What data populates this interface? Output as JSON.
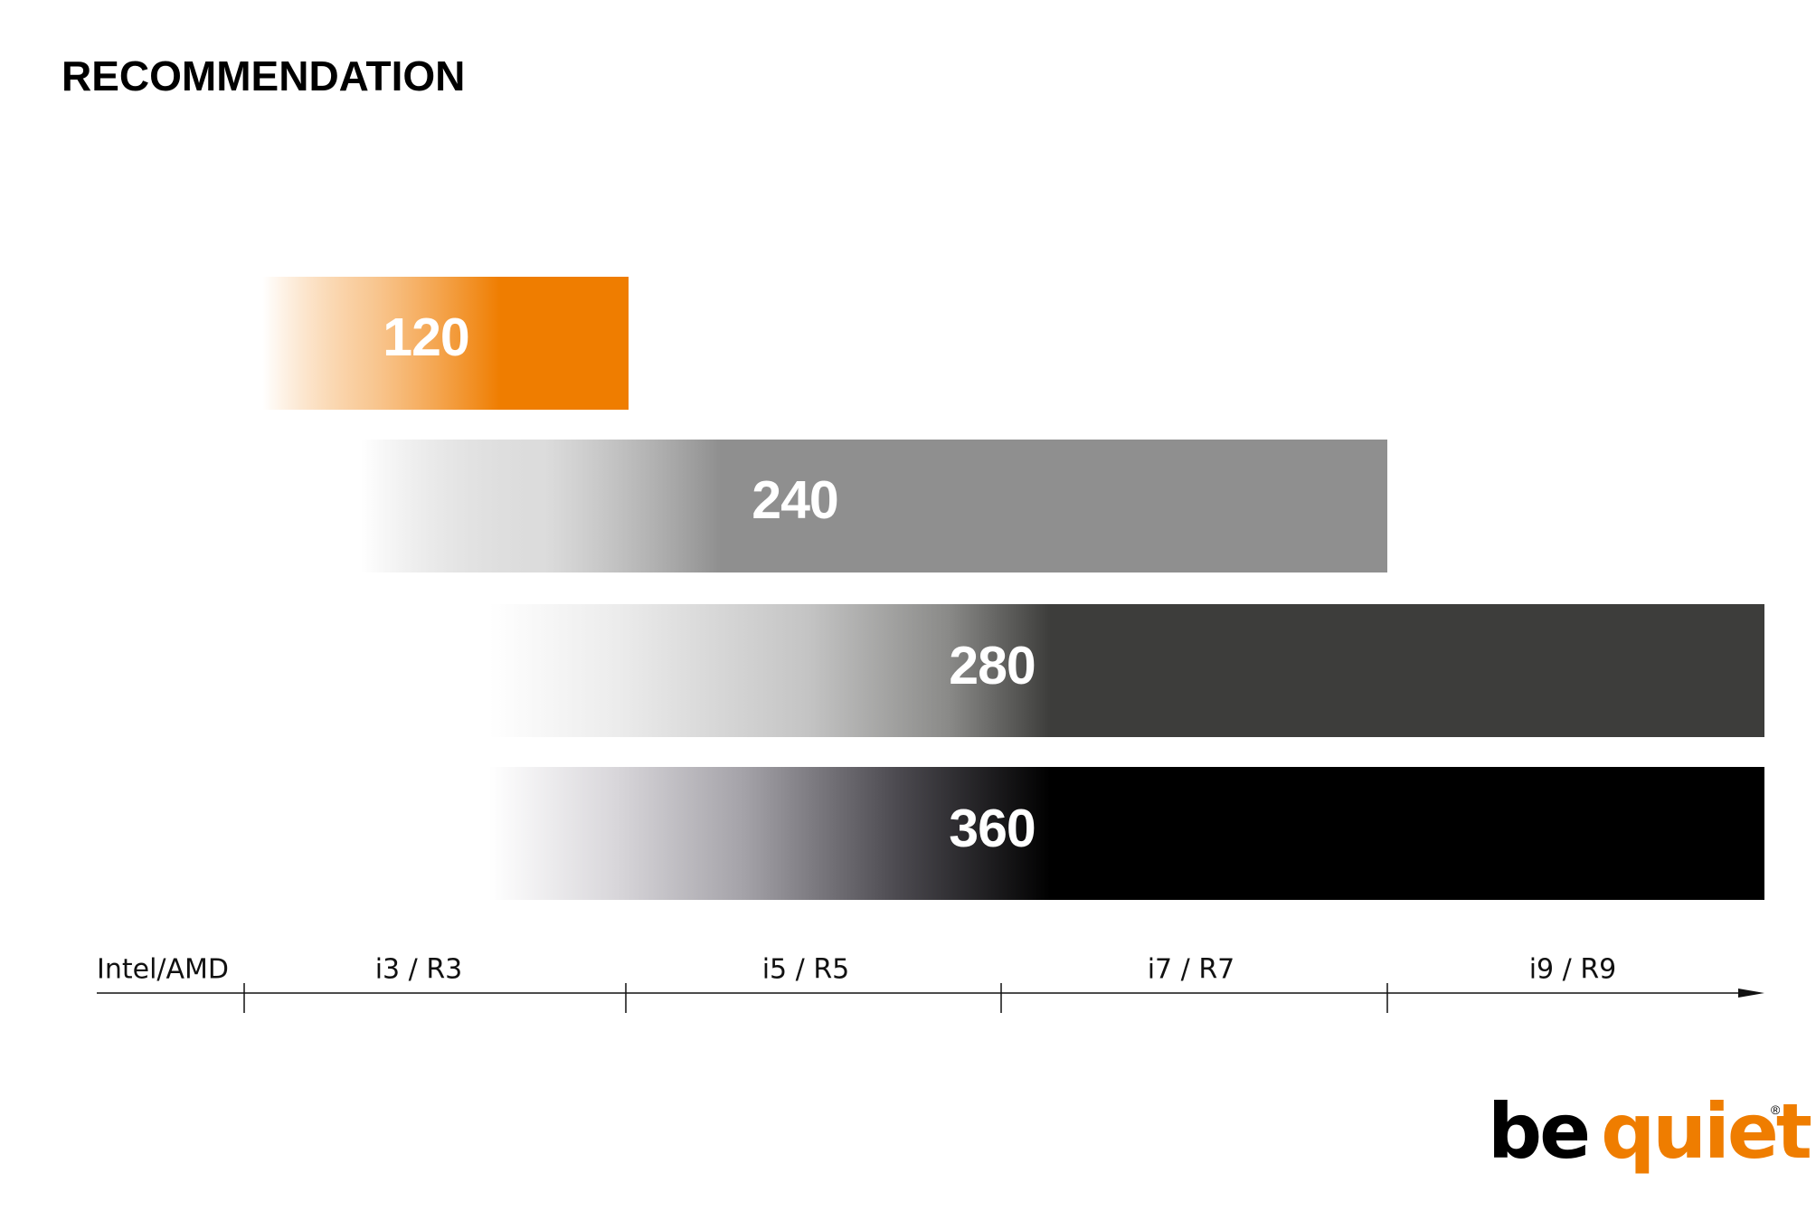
{
  "header": {
    "title": "RECOMMENDATION"
  },
  "bars": [
    {
      "label": "120"
    },
    {
      "label": "240"
    },
    {
      "label": "280"
    },
    {
      "label": "360"
    }
  ],
  "axis": {
    "labels": [
      "Intel/AMD",
      "i3 / R3",
      "i5 / R5",
      "i7 / R7",
      "i9 / R9"
    ]
  },
  "logo": {
    "word1": "be",
    "word2": "quiet!",
    "mark": "®"
  }
}
